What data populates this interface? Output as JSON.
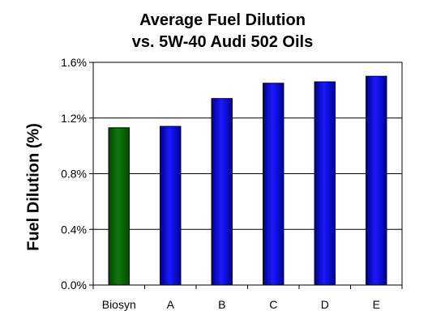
{
  "chart_data": {
    "type": "bar",
    "title_lines": [
      "Average Fuel Dilution",
      "vs. 5W-40 Audi 502 Oils"
    ],
    "xlabel": "",
    "ylabel": "Fuel Dilution (%)",
    "categories": [
      "Biosyn",
      "A",
      "B",
      "C",
      "D",
      "E"
    ],
    "values": [
      1.13,
      1.14,
      1.34,
      1.45,
      1.46,
      1.5
    ],
    "bar_colors": [
      "#006400",
      "#0000ff",
      "#0000ff",
      "#0000ff",
      "#0000ff",
      "#0000ff"
    ],
    "ylim": [
      0,
      1.6
    ],
    "yticks": [
      0,
      0.4,
      0.8,
      1.2,
      1.6
    ],
    "ytick_labels": [
      "0.0%",
      "0.4%",
      "0.8%",
      "1.2%",
      "1.6%"
    ],
    "grid": true,
    "legend": "none"
  }
}
